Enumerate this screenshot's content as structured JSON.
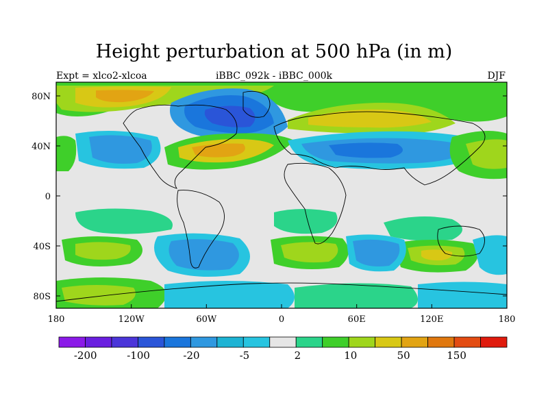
{
  "title": "Height perturbation at 500 hPa (in m)",
  "left_label": "Expt = xlco2-xlcoa",
  "center_label": "iBBC_092k - iBBC_000k",
  "right_label": "DJF",
  "lat_labels": [
    "80N",
    "40N",
    "0",
    "40S",
    "80S"
  ],
  "lon_labels": [
    "180",
    "120W",
    "60W",
    "0",
    "60E",
    "120E",
    "180"
  ],
  "colorbar": {
    "colors": [
      "#8b1ae8",
      "#6a1fe0",
      "#4b35d9",
      "#2a55d8",
      "#1a76dc",
      "#2f98e0",
      "#1db3d4",
      "#27c4e0",
      "#e6e6e6",
      "#2bd48a",
      "#3fcf2a",
      "#9fd61c",
      "#d8c815",
      "#e2a413",
      "#e0780e",
      "#e34c12",
      "#e01b0d"
    ],
    "labels": [
      "-200",
      "-100",
      "-20",
      "-5",
      "2",
      "10",
      "50",
      "150"
    ]
  },
  "colors": {
    "neutral": "#e6e6e6",
    "green": "#3fcf2a",
    "lightgreen": "#2bd48a",
    "yellowgreen": "#9fd61c",
    "yellow": "#d8c815",
    "orange": "#e2a413",
    "cyan": "#27c4e0",
    "lightblue": "#2f98e0",
    "blue": "#1a76dc",
    "darkblue": "#2a55d8"
  }
}
